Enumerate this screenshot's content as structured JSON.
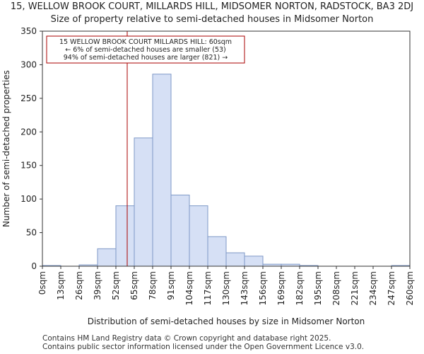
{
  "chart_data": {
    "type": "bar",
    "title": "15, WELLOW BROOK COURT, MILLARDS HILL, MIDSOMER NORTON, RADSTOCK, BA3 2DJ",
    "subtitle": "Size of property relative to semi-detached houses in Midsomer Norton",
    "xlabel": "Distribution of semi-detached houses by size in Midsomer Norton",
    "ylabel": "Number of semi-detached properties",
    "ylim": [
      0,
      350
    ],
    "yticks": [
      0,
      50,
      100,
      150,
      200,
      250,
      300,
      350
    ],
    "bin_edges": [
      0,
      13,
      26,
      39,
      52,
      65,
      78,
      91,
      104,
      117,
      130,
      143,
      156,
      169,
      182,
      195,
      208,
      221,
      234,
      247,
      260
    ],
    "xtick_labels": [
      "0sqm",
      "13sqm",
      "26sqm",
      "39sqm",
      "52sqm",
      "65sqm",
      "78sqm",
      "91sqm",
      "104sqm",
      "117sqm",
      "130sqm",
      "143sqm",
      "156sqm",
      "169sqm",
      "182sqm",
      "195sqm",
      "208sqm",
      "221sqm",
      "234sqm",
      "247sqm",
      "260sqm"
    ],
    "values": [
      1,
      0,
      2,
      26,
      90,
      191,
      286,
      106,
      90,
      44,
      20,
      15,
      3,
      3,
      1,
      0,
      0,
      0,
      0,
      1
    ],
    "property_marker": {
      "value": 60
    },
    "annotation": {
      "line1": "15 WELLOW BROOK COURT MILLARDS HILL: 60sqm",
      "line2": "← 6% of semi-detached houses are smaller (53)",
      "line3": "94% of semi-detached houses are larger (821) →"
    },
    "colors": {
      "bar_fill": "#d6e0f5",
      "bar_edge": "#7f99c7",
      "marker": "#aa0000",
      "annotation_border": "#aa0000"
    }
  },
  "footer": {
    "line1": "Contains HM Land Registry data © Crown copyright and database right 2025.",
    "line2": "Contains public sector information licensed under the Open Government Licence v3.0."
  }
}
